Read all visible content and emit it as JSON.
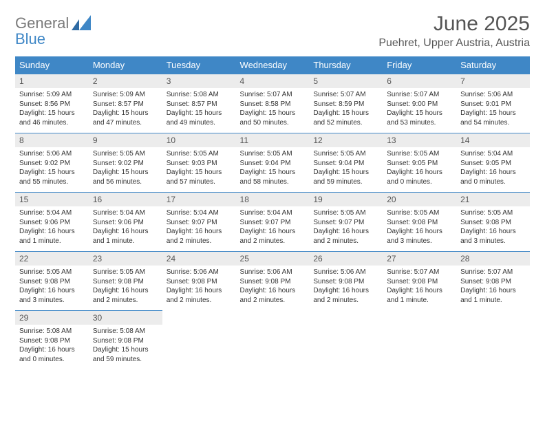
{
  "brand": {
    "part1": "General",
    "part2": "Blue"
  },
  "title": "June 2025",
  "location": "Puehret, Upper Austria, Austria",
  "colors": {
    "header_bg": "#3f87c6",
    "header_text": "#ffffff",
    "daynum_bg": "#ececec",
    "daynum_border": "#3f87c6",
    "brand_gray": "#7a7a7a",
    "brand_blue": "#3f87c6"
  },
  "weekdays": [
    "Sunday",
    "Monday",
    "Tuesday",
    "Wednesday",
    "Thursday",
    "Friday",
    "Saturday"
  ],
  "weeks": [
    [
      {
        "num": "1",
        "sunrise": "5:09 AM",
        "sunset": "8:56 PM",
        "daylight": "15 hours and 46 minutes."
      },
      {
        "num": "2",
        "sunrise": "5:09 AM",
        "sunset": "8:57 PM",
        "daylight": "15 hours and 47 minutes."
      },
      {
        "num": "3",
        "sunrise": "5:08 AM",
        "sunset": "8:57 PM",
        "daylight": "15 hours and 49 minutes."
      },
      {
        "num": "4",
        "sunrise": "5:07 AM",
        "sunset": "8:58 PM",
        "daylight": "15 hours and 50 minutes."
      },
      {
        "num": "5",
        "sunrise": "5:07 AM",
        "sunset": "8:59 PM",
        "daylight": "15 hours and 52 minutes."
      },
      {
        "num": "6",
        "sunrise": "5:07 AM",
        "sunset": "9:00 PM",
        "daylight": "15 hours and 53 minutes."
      },
      {
        "num": "7",
        "sunrise": "5:06 AM",
        "sunset": "9:01 PM",
        "daylight": "15 hours and 54 minutes."
      }
    ],
    [
      {
        "num": "8",
        "sunrise": "5:06 AM",
        "sunset": "9:02 PM",
        "daylight": "15 hours and 55 minutes."
      },
      {
        "num": "9",
        "sunrise": "5:05 AM",
        "sunset": "9:02 PM",
        "daylight": "15 hours and 56 minutes."
      },
      {
        "num": "10",
        "sunrise": "5:05 AM",
        "sunset": "9:03 PM",
        "daylight": "15 hours and 57 minutes."
      },
      {
        "num": "11",
        "sunrise": "5:05 AM",
        "sunset": "9:04 PM",
        "daylight": "15 hours and 58 minutes."
      },
      {
        "num": "12",
        "sunrise": "5:05 AM",
        "sunset": "9:04 PM",
        "daylight": "15 hours and 59 minutes."
      },
      {
        "num": "13",
        "sunrise": "5:05 AM",
        "sunset": "9:05 PM",
        "daylight": "16 hours and 0 minutes."
      },
      {
        "num": "14",
        "sunrise": "5:04 AM",
        "sunset": "9:05 PM",
        "daylight": "16 hours and 0 minutes."
      }
    ],
    [
      {
        "num": "15",
        "sunrise": "5:04 AM",
        "sunset": "9:06 PM",
        "daylight": "16 hours and 1 minute."
      },
      {
        "num": "16",
        "sunrise": "5:04 AM",
        "sunset": "9:06 PM",
        "daylight": "16 hours and 1 minute."
      },
      {
        "num": "17",
        "sunrise": "5:04 AM",
        "sunset": "9:07 PM",
        "daylight": "16 hours and 2 minutes."
      },
      {
        "num": "18",
        "sunrise": "5:04 AM",
        "sunset": "9:07 PM",
        "daylight": "16 hours and 2 minutes."
      },
      {
        "num": "19",
        "sunrise": "5:05 AM",
        "sunset": "9:07 PM",
        "daylight": "16 hours and 2 minutes."
      },
      {
        "num": "20",
        "sunrise": "5:05 AM",
        "sunset": "9:08 PM",
        "daylight": "16 hours and 3 minutes."
      },
      {
        "num": "21",
        "sunrise": "5:05 AM",
        "sunset": "9:08 PM",
        "daylight": "16 hours and 3 minutes."
      }
    ],
    [
      {
        "num": "22",
        "sunrise": "5:05 AM",
        "sunset": "9:08 PM",
        "daylight": "16 hours and 3 minutes."
      },
      {
        "num": "23",
        "sunrise": "5:05 AM",
        "sunset": "9:08 PM",
        "daylight": "16 hours and 2 minutes."
      },
      {
        "num": "24",
        "sunrise": "5:06 AM",
        "sunset": "9:08 PM",
        "daylight": "16 hours and 2 minutes."
      },
      {
        "num": "25",
        "sunrise": "5:06 AM",
        "sunset": "9:08 PM",
        "daylight": "16 hours and 2 minutes."
      },
      {
        "num": "26",
        "sunrise": "5:06 AM",
        "sunset": "9:08 PM",
        "daylight": "16 hours and 2 minutes."
      },
      {
        "num": "27",
        "sunrise": "5:07 AM",
        "sunset": "9:08 PM",
        "daylight": "16 hours and 1 minute."
      },
      {
        "num": "28",
        "sunrise": "5:07 AM",
        "sunset": "9:08 PM",
        "daylight": "16 hours and 1 minute."
      }
    ],
    [
      {
        "num": "29",
        "sunrise": "5:08 AM",
        "sunset": "9:08 PM",
        "daylight": "16 hours and 0 minutes."
      },
      {
        "num": "30",
        "sunrise": "5:08 AM",
        "sunset": "9:08 PM",
        "daylight": "15 hours and 59 minutes."
      },
      null,
      null,
      null,
      null,
      null
    ]
  ],
  "labels": {
    "sunrise_prefix": "Sunrise: ",
    "sunset_prefix": "Sunset: ",
    "daylight_prefix": "Daylight: "
  }
}
